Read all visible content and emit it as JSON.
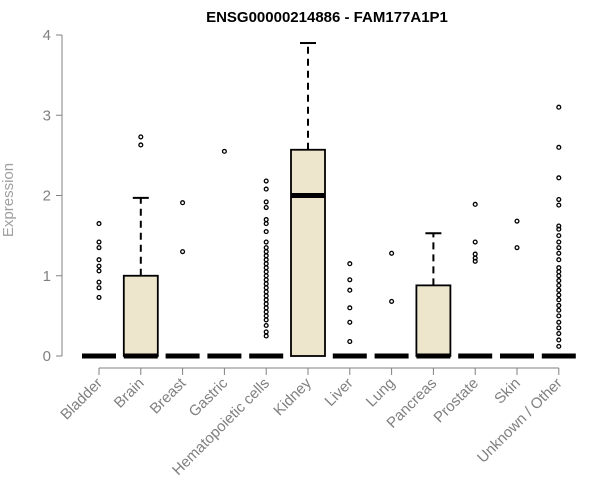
{
  "chart_data": {
    "type": "box",
    "title": "ENSG00000214886 - FAM177A1P1",
    "xlabel": "",
    "ylabel": "Expression",
    "ylim": [
      0,
      4
    ],
    "yticks": [
      0,
      1,
      2,
      3,
      4
    ],
    "box_color": "#ede6cd",
    "categories": [
      "Bladder",
      "Brain",
      "Breast",
      "Gastric",
      "Hematopoietic cells",
      "Kidney",
      "Liver",
      "Lung",
      "Pancreas",
      "Prostate",
      "Skin",
      "Unknown / Other"
    ],
    "boxes": [
      {
        "q1": 0,
        "median": 0,
        "q3": 0,
        "whisker_low": 0,
        "whisker_high": 0,
        "outliers": [
          0.73,
          0.85,
          0.92,
          1.06,
          1.12,
          1.2,
          1.35,
          1.42,
          1.65
        ]
      },
      {
        "q1": 0,
        "median": 0,
        "q3": 1.0,
        "whisker_low": 0,
        "whisker_high": 1.97,
        "outliers": [
          2.63,
          2.73
        ]
      },
      {
        "q1": 0,
        "median": 0,
        "q3": 0,
        "whisker_low": 0,
        "whisker_high": 0,
        "outliers": [
          1.3,
          1.91
        ]
      },
      {
        "q1": 0,
        "median": 0,
        "q3": 0,
        "whisker_low": 0,
        "whisker_high": 0,
        "outliers": [
          2.55
        ]
      },
      {
        "q1": 0,
        "median": 0,
        "q3": 0,
        "whisker_low": 0,
        "whisker_high": 0,
        "outliers": [
          0.25,
          0.3,
          0.38,
          0.45,
          0.5,
          0.55,
          0.6,
          0.65,
          0.7,
          0.75,
          0.8,
          0.85,
          0.9,
          0.95,
          1.0,
          1.05,
          1.1,
          1.15,
          1.2,
          1.25,
          1.3,
          1.35,
          1.42,
          1.55,
          1.65,
          1.7,
          1.85,
          1.92,
          2.08,
          2.18
        ]
      },
      {
        "q1": 0,
        "median": 2.0,
        "q3": 2.57,
        "whisker_low": 0,
        "whisker_high": 3.9,
        "outliers": []
      },
      {
        "q1": 0,
        "median": 0,
        "q3": 0,
        "whisker_low": 0,
        "whisker_high": 0,
        "outliers": [
          0.18,
          0.42,
          0.6,
          0.82,
          0.95,
          1.15
        ]
      },
      {
        "q1": 0,
        "median": 0,
        "q3": 0,
        "whisker_low": 0,
        "whisker_high": 0,
        "outliers": [
          0.68,
          1.28
        ]
      },
      {
        "q1": 0,
        "median": 0,
        "q3": 0.88,
        "whisker_low": 0,
        "whisker_high": 1.53,
        "outliers": []
      },
      {
        "q1": 0,
        "median": 0,
        "q3": 0,
        "whisker_low": 0,
        "whisker_high": 0,
        "outliers": [
          1.18,
          1.22,
          1.27,
          1.42,
          1.89
        ]
      },
      {
        "q1": 0,
        "median": 0,
        "q3": 0,
        "whisker_low": 0,
        "whisker_high": 0,
        "outliers": [
          1.35,
          1.68
        ]
      },
      {
        "q1": 0,
        "median": 0,
        "q3": 0,
        "whisker_low": 0,
        "whisker_high": 0,
        "outliers": [
          0.12,
          0.2,
          0.28,
          0.35,
          0.42,
          0.5,
          0.57,
          0.63,
          0.7,
          0.76,
          0.82,
          0.88,
          0.94,
          1.0,
          1.05,
          1.1,
          1.2,
          1.28,
          1.35,
          1.42,
          1.5,
          1.58,
          1.62,
          1.88,
          1.95,
          2.22,
          2.6,
          3.1
        ]
      }
    ]
  }
}
